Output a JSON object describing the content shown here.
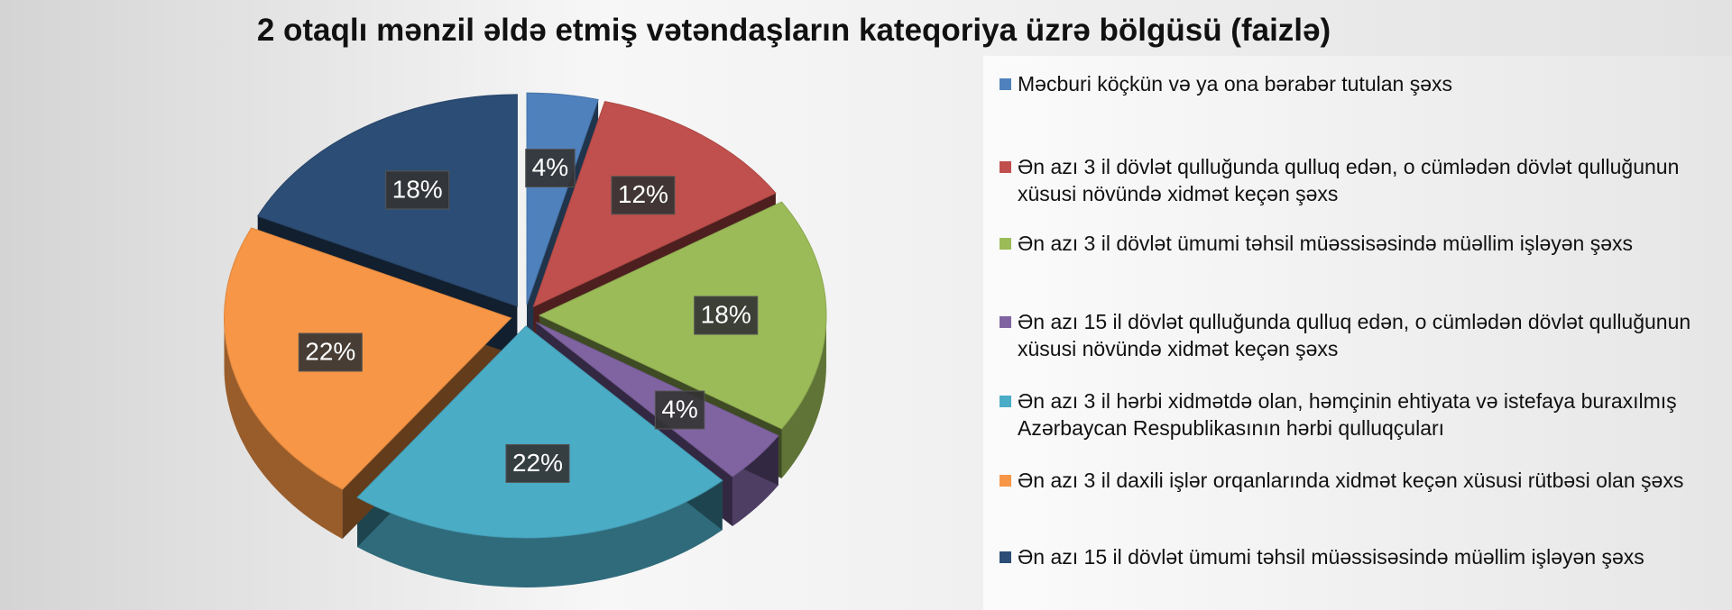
{
  "chart_data": {
    "type": "pie",
    "title": "2 otaqlı mənzil əldə etmiş vətəndaşların kateqoriya üzrə bölgüsü (faizlə)",
    "categories": [
      "Məcburi köçkün və ya ona bərabər tutulan şəxs",
      "Ən azı 3 il dövlət qulluğunda qulluq edən, o cümlədən dövlət qulluğunun xüsusi növündə xidmət keçən şəxs",
      "Ən azı 3 il dövlət ümumi təhsil müəssisəsində müəllim işləyən şəxs",
      "Ən azı 15 il dövlət qulluğunda qulluq edən, o cümlədən dövlət qulluğunun xüsusi növündə xidmət keçən şəxs",
      "Ən azı 3 il hərbi xidmətdə olan, həmçinin ehtiyata və istefaya buraxılmış Azərbaycan Respublikasının hərbi qulluqçuları",
      "Ən azı 3 il daxili işlər orqanlarında xidmət keçən xüsusi rütbəsi olan şəxs",
      "Ən azı 15 il dövlət ümumi təhsil müəssisəsində müəllim işləyən şəxs"
    ],
    "values": [
      4,
      12,
      18,
      4,
      22,
      22,
      18
    ],
    "value_labels": [
      "4%",
      "12%",
      "18%",
      "4%",
      "22%",
      "22%",
      "18%"
    ],
    "colors": [
      "#4f81bd",
      "#c0504d",
      "#9bbb59",
      "#8064a2",
      "#4bacc6",
      "#f79646",
      "#2c4d75"
    ],
    "legend": "right"
  }
}
